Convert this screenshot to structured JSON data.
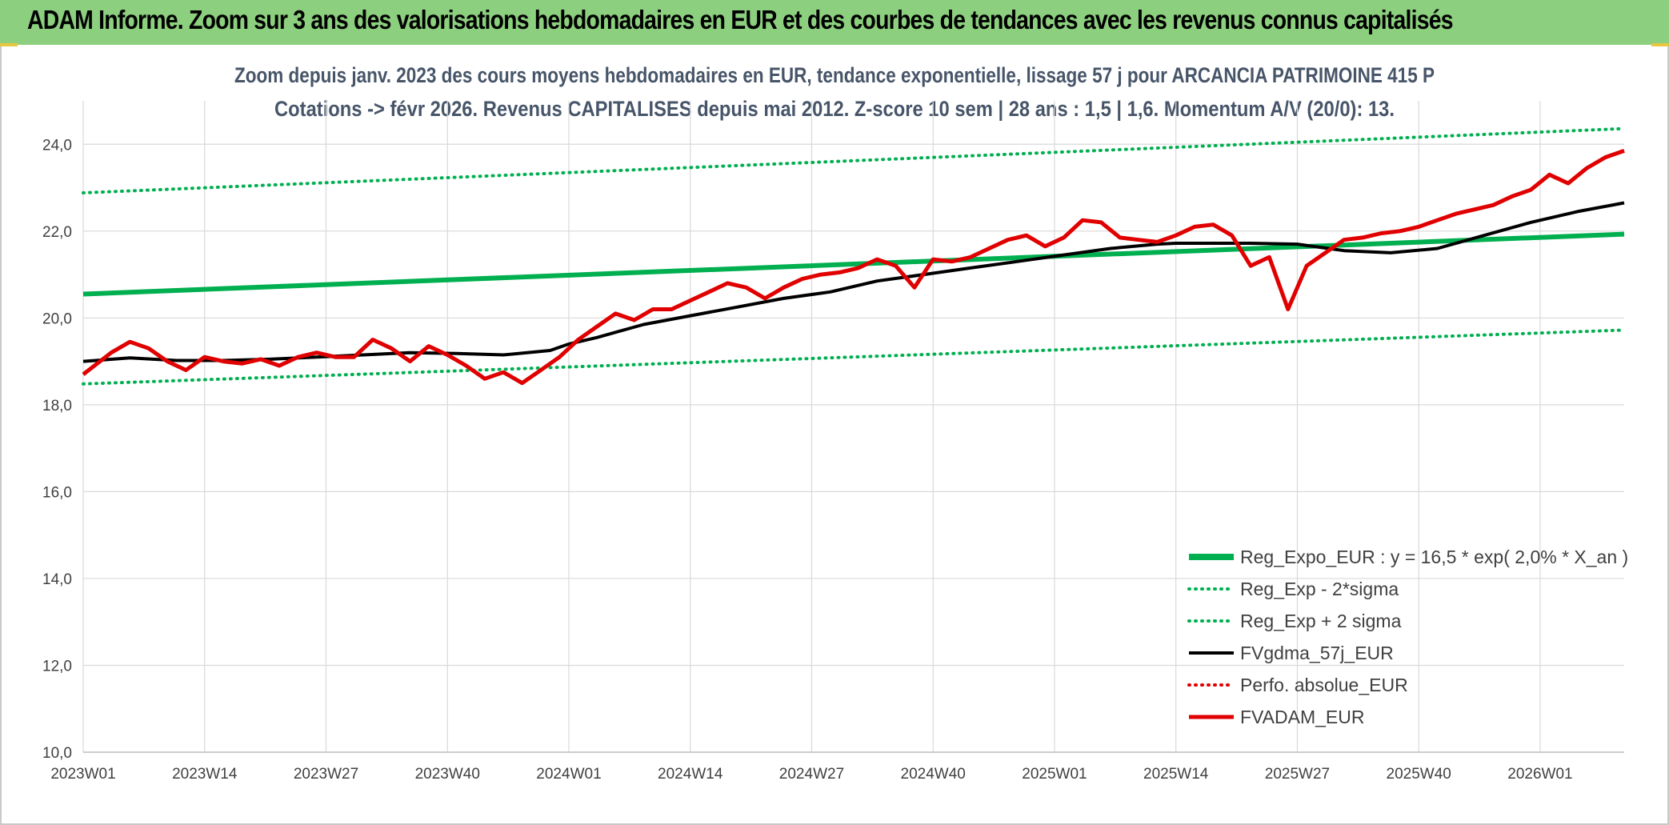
{
  "window": {
    "title": "ADAM Informe. Zoom sur 3 ans des valorisations hebdomadaires en EUR et des courbes de tendances avec les revenus connus capitalisés"
  },
  "chart_data": {
    "type": "line",
    "subtitle_line1": "Zoom depuis janv. 2023 des cours moyens hebdomadaires en EUR, tendance exponentielle, lissage 57 j pour ARCANCIA PATRIMOINE 415 P",
    "subtitle_line2": "Cotations -> févr 2026. Revenus CAPITALISES depuis mai 2012. Z-score 10 sem | 28 ans : 1,5 | 1,6. Momentum A/V (20/0): 13.",
    "xlabel": "",
    "ylabel": "",
    "x_tick_labels": [
      "2023W01",
      "2023W14",
      "2023W27",
      "2023W40",
      "2024W01",
      "2024W14",
      "2024W27",
      "2024W40",
      "2025W01",
      "2025W14",
      "2025W27",
      "2025W40",
      "2026W01"
    ],
    "x_week_range": [
      0,
      165
    ],
    "y_ticks": [
      "10,0",
      "12,0",
      "14,0",
      "16,0",
      "18,0",
      "20,0",
      "22,0",
      "24,0"
    ],
    "ylim": [
      10,
      25
    ],
    "grid": true,
    "legend_position": "bottom-right",
    "series": [
      {
        "name": "Reg_Expo_EUR : y = 16,5 * exp( 2,0% *  X_an )",
        "color": "#00b050",
        "style": "solid-thick",
        "x": [
          0,
          165
        ],
        "values": [
          20.55,
          21.93
        ]
      },
      {
        "name": "Reg_Exp - 2*sigma",
        "color": "#00b050",
        "style": "dotted",
        "x": [
          0,
          165
        ],
        "values": [
          18.48,
          19.72
        ]
      },
      {
        "name": "Reg_Exp + 2 sigma",
        "color": "#00b050",
        "style": "dotted",
        "x": [
          0,
          165
        ],
        "values": [
          22.88,
          24.36
        ]
      },
      {
        "name": "FVgdma_57j_EUR",
        "color": "#000000",
        "style": "solid",
        "x": [
          0,
          5,
          10,
          15,
          20,
          25,
          30,
          35,
          40,
          45,
          50,
          52,
          55,
          60,
          65,
          70,
          75,
          80,
          85,
          90,
          95,
          100,
          105,
          110,
          115,
          117,
          120,
          125,
          130,
          135,
          140,
          145,
          150,
          155,
          160,
          165
        ],
        "values": [
          19.0,
          19.08,
          19.02,
          19.02,
          19.05,
          19.1,
          19.15,
          19.2,
          19.18,
          19.15,
          19.25,
          19.4,
          19.55,
          19.85,
          20.05,
          20.25,
          20.45,
          20.6,
          20.85,
          21.0,
          21.15,
          21.3,
          21.45,
          21.6,
          21.7,
          21.72,
          21.72,
          21.72,
          21.7,
          21.55,
          21.5,
          21.6,
          21.9,
          22.2,
          22.45,
          22.65
        ]
      },
      {
        "name": "Perfo. absolue_EUR",
        "color": "#e00000",
        "style": "dotted",
        "x": [],
        "values": []
      },
      {
        "name": "FVADAM_EUR",
        "color": "#e00000",
        "style": "solid-thick",
        "x": [
          0,
          3,
          5,
          7,
          9,
          11,
          13,
          15,
          17,
          19,
          21,
          23,
          25,
          27,
          29,
          31,
          33,
          35,
          37,
          39,
          41,
          43,
          45,
          47,
          49,
          51,
          53,
          55,
          57,
          59,
          61,
          63,
          65,
          67,
          69,
          71,
          73,
          75,
          77,
          79,
          81,
          83,
          85,
          87,
          89,
          91,
          93,
          95,
          97,
          99,
          101,
          103,
          105,
          107,
          109,
          111,
          113,
          115,
          117,
          119,
          121,
          123,
          125,
          127,
          129,
          131,
          133,
          135,
          137,
          139,
          141,
          143,
          145,
          147,
          149,
          151,
          153,
          155,
          157,
          159,
          161,
          163,
          165
        ],
        "values": [
          18.7,
          19.2,
          19.45,
          19.3,
          19.0,
          18.8,
          19.1,
          19.0,
          18.95,
          19.05,
          18.9,
          19.1,
          19.2,
          19.1,
          19.1,
          19.5,
          19.3,
          19.0,
          19.35,
          19.15,
          18.9,
          18.6,
          18.75,
          18.5,
          18.8,
          19.1,
          19.5,
          19.8,
          20.1,
          19.95,
          20.2,
          20.2,
          20.4,
          20.6,
          20.8,
          20.7,
          20.45,
          20.7,
          20.9,
          21.0,
          21.05,
          21.15,
          21.35,
          21.2,
          20.7,
          21.35,
          21.3,
          21.4,
          21.6,
          21.8,
          21.9,
          21.65,
          21.85,
          22.25,
          22.2,
          21.85,
          21.8,
          21.75,
          21.9,
          22.1,
          22.15,
          21.9,
          21.2,
          21.4,
          20.2,
          21.2,
          21.5,
          21.8,
          21.85,
          21.95,
          22.0,
          22.1,
          22.25,
          22.4,
          22.5,
          22.6,
          22.8,
          22.95,
          23.3,
          23.1,
          23.45,
          23.7,
          23.85
        ]
      }
    ]
  }
}
